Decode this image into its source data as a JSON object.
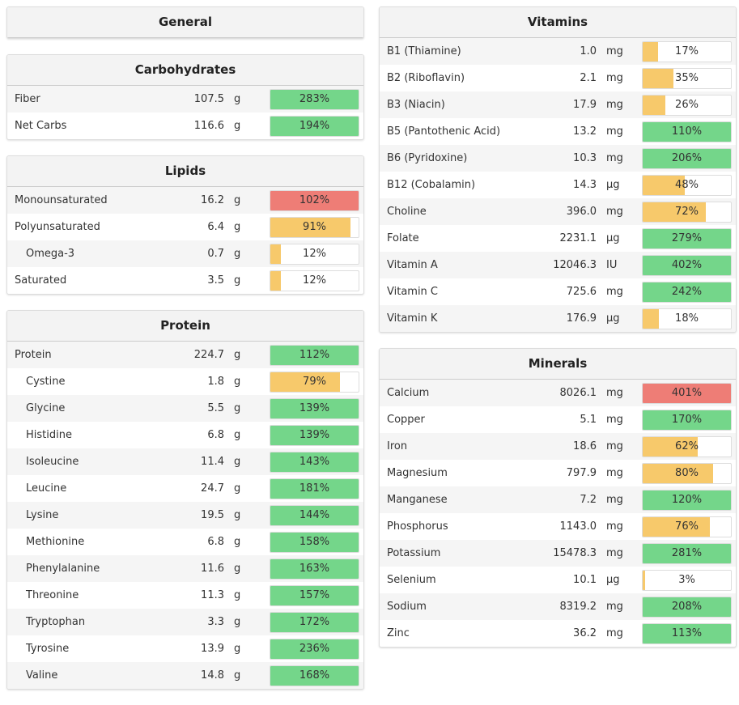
{
  "columns": [
    [
      {
        "title": "General",
        "rows": []
      },
      {
        "title": "Carbohydrates",
        "rows": [
          {
            "name": "Fiber",
            "amount": "107.5",
            "unit": "g",
            "percent": 283,
            "percent_label": "283%",
            "color": "#74d68a"
          },
          {
            "name": "Net Carbs",
            "amount": "116.6",
            "unit": "g",
            "percent": 194,
            "percent_label": "194%",
            "color": "#74d68a"
          }
        ]
      },
      {
        "title": "Lipids",
        "rows": [
          {
            "name": "Monounsaturated",
            "amount": "16.2",
            "unit": "g",
            "percent": 102,
            "percent_label": "102%",
            "color": "#ee7d76"
          },
          {
            "name": "Polyunsaturated",
            "amount": "6.4",
            "unit": "g",
            "percent": 91,
            "percent_label": "91%",
            "color": "#f7c96b"
          },
          {
            "name": "Omega-3",
            "amount": "0.7",
            "unit": "g",
            "percent": 12,
            "percent_label": "12%",
            "color": "#f7c96b",
            "sub": true
          },
          {
            "name": "Saturated",
            "amount": "3.5",
            "unit": "g",
            "percent": 12,
            "percent_label": "12%",
            "color": "#f7c96b"
          }
        ]
      },
      {
        "title": "Protein",
        "rows": [
          {
            "name": "Protein",
            "amount": "224.7",
            "unit": "g",
            "percent": 112,
            "percent_label": "112%",
            "color": "#74d68a"
          },
          {
            "name": "Cystine",
            "amount": "1.8",
            "unit": "g",
            "percent": 79,
            "percent_label": "79%",
            "color": "#f7c96b",
            "sub": true
          },
          {
            "name": "Glycine",
            "amount": "5.5",
            "unit": "g",
            "percent": 139,
            "percent_label": "139%",
            "color": "#74d68a",
            "sub": true
          },
          {
            "name": "Histidine",
            "amount": "6.8",
            "unit": "g",
            "percent": 139,
            "percent_label": "139%",
            "color": "#74d68a",
            "sub": true
          },
          {
            "name": "Isoleucine",
            "amount": "11.4",
            "unit": "g",
            "percent": 143,
            "percent_label": "143%",
            "color": "#74d68a",
            "sub": true
          },
          {
            "name": "Leucine",
            "amount": "24.7",
            "unit": "g",
            "percent": 181,
            "percent_label": "181%",
            "color": "#74d68a",
            "sub": true
          },
          {
            "name": "Lysine",
            "amount": "19.5",
            "unit": "g",
            "percent": 144,
            "percent_label": "144%",
            "color": "#74d68a",
            "sub": true
          },
          {
            "name": "Methionine",
            "amount": "6.8",
            "unit": "g",
            "percent": 158,
            "percent_label": "158%",
            "color": "#74d68a",
            "sub": true
          },
          {
            "name": "Phenylalanine",
            "amount": "11.6",
            "unit": "g",
            "percent": 163,
            "percent_label": "163%",
            "color": "#74d68a",
            "sub": true
          },
          {
            "name": "Threonine",
            "amount": "11.3",
            "unit": "g",
            "percent": 157,
            "percent_label": "157%",
            "color": "#74d68a",
            "sub": true
          },
          {
            "name": "Tryptophan",
            "amount": "3.3",
            "unit": "g",
            "percent": 172,
            "percent_label": "172%",
            "color": "#74d68a",
            "sub": true
          },
          {
            "name": "Tyrosine",
            "amount": "13.9",
            "unit": "g",
            "percent": 236,
            "percent_label": "236%",
            "color": "#74d68a",
            "sub": true
          },
          {
            "name": "Valine",
            "amount": "14.8",
            "unit": "g",
            "percent": 168,
            "percent_label": "168%",
            "color": "#74d68a",
            "sub": true
          }
        ]
      }
    ],
    [
      {
        "title": "Vitamins",
        "rows": [
          {
            "name": "B1 (Thiamine)",
            "amount": "1.0",
            "unit": "mg",
            "percent": 17,
            "percent_label": "17%",
            "color": "#f7c96b"
          },
          {
            "name": "B2 (Riboflavin)",
            "amount": "2.1",
            "unit": "mg",
            "percent": 35,
            "percent_label": "35%",
            "color": "#f7c96b"
          },
          {
            "name": "B3 (Niacin)",
            "amount": "17.9",
            "unit": "mg",
            "percent": 26,
            "percent_label": "26%",
            "color": "#f7c96b"
          },
          {
            "name": "B5 (Pantothenic Acid)",
            "amount": "13.2",
            "unit": "mg",
            "percent": 110,
            "percent_label": "110%",
            "color": "#74d68a"
          },
          {
            "name": "B6 (Pyridoxine)",
            "amount": "10.3",
            "unit": "mg",
            "percent": 206,
            "percent_label": "206%",
            "color": "#74d68a"
          },
          {
            "name": "B12 (Cobalamin)",
            "amount": "14.3",
            "unit": "µg",
            "percent": 48,
            "percent_label": "48%",
            "color": "#f7c96b"
          },
          {
            "name": "Choline",
            "amount": "396.0",
            "unit": "mg",
            "percent": 72,
            "percent_label": "72%",
            "color": "#f7c96b"
          },
          {
            "name": "Folate",
            "amount": "2231.1",
            "unit": "µg",
            "percent": 279,
            "percent_label": "279%",
            "color": "#74d68a"
          },
          {
            "name": "Vitamin A",
            "amount": "12046.3",
            "unit": "IU",
            "percent": 402,
            "percent_label": "402%",
            "color": "#74d68a"
          },
          {
            "name": "Vitamin C",
            "amount": "725.6",
            "unit": "mg",
            "percent": 242,
            "percent_label": "242%",
            "color": "#74d68a"
          },
          {
            "name": "Vitamin K",
            "amount": "176.9",
            "unit": "µg",
            "percent": 18,
            "percent_label": "18%",
            "color": "#f7c96b"
          }
        ]
      },
      {
        "title": "Minerals",
        "rows": [
          {
            "name": "Calcium",
            "amount": "8026.1",
            "unit": "mg",
            "percent": 401,
            "percent_label": "401%",
            "color": "#ee7d76"
          },
          {
            "name": "Copper",
            "amount": "5.1",
            "unit": "mg",
            "percent": 170,
            "percent_label": "170%",
            "color": "#74d68a"
          },
          {
            "name": "Iron",
            "amount": "18.6",
            "unit": "mg",
            "percent": 62,
            "percent_label": "62%",
            "color": "#f7c96b"
          },
          {
            "name": "Magnesium",
            "amount": "797.9",
            "unit": "mg",
            "percent": 80,
            "percent_label": "80%",
            "color": "#f7c96b"
          },
          {
            "name": "Manganese",
            "amount": "7.2",
            "unit": "mg",
            "percent": 120,
            "percent_label": "120%",
            "color": "#74d68a"
          },
          {
            "name": "Phosphorus",
            "amount": "1143.0",
            "unit": "mg",
            "percent": 76,
            "percent_label": "76%",
            "color": "#f7c96b"
          },
          {
            "name": "Potassium",
            "amount": "15478.3",
            "unit": "mg",
            "percent": 281,
            "percent_label": "281%",
            "color": "#74d68a"
          },
          {
            "name": "Selenium",
            "amount": "10.1",
            "unit": "µg",
            "percent": 3,
            "percent_label": "3%",
            "color": "#f7c96b"
          },
          {
            "name": "Sodium",
            "amount": "8319.2",
            "unit": "mg",
            "percent": 208,
            "percent_label": "208%",
            "color": "#74d68a"
          },
          {
            "name": "Zinc",
            "amount": "36.2",
            "unit": "mg",
            "percent": 113,
            "percent_label": "113%",
            "color": "#74d68a"
          }
        ]
      }
    ]
  ]
}
